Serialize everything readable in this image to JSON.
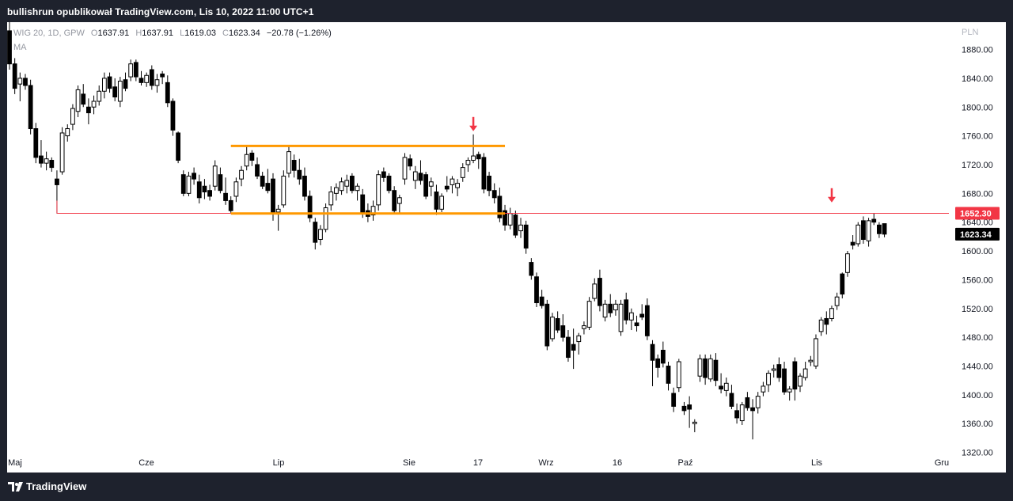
{
  "header": {
    "publish_text": "bullishrun opublikował TradingView.com, Lis 10, 2022 11:00 UTC+1"
  },
  "legend": {
    "symbol": "WIG 20, 1D, GPW",
    "open_label": "O",
    "open": "1637.91",
    "high_label": "H",
    "high": "1637.91",
    "low_label": "L",
    "low": "1619.03",
    "close_label": "C",
    "close": "1623.34",
    "change": "−20.78 (−1.26%)",
    "indicator": "MA"
  },
  "footer": {
    "brand": "TradingView",
    "logo_icon": "tradingview-logo-icon"
  },
  "colors": {
    "frame": "#1e222d",
    "candle": "#000000",
    "resistance_line": "#ff9800",
    "support_level": "#f23645",
    "arrow": "#f23645",
    "axis_text": "#131722"
  },
  "chart_data": {
    "type": "candlestick",
    "currency_label": "PLN",
    "y_ticks": [
      1880,
      1840,
      1800,
      1760,
      1720,
      1680,
      1640,
      1600,
      1560,
      1520,
      1480,
      1440,
      1400,
      1360,
      1320
    ],
    "ylim": [
      1292,
      1918
    ],
    "x_labels": [
      "Maj",
      "Cze",
      "Lip",
      "Sie",
      "17",
      "Wrz",
      "16",
      "Paź",
      "Lis",
      "Gru"
    ],
    "price_labels": [
      {
        "name": "support",
        "value": "1652.30",
        "color": "#f23645"
      },
      {
        "name": "last",
        "value": "1623.34",
        "color": "#000000"
      }
    ],
    "levels": {
      "support": 1652.3
    },
    "channel": {
      "top": 1746,
      "bottom": 1652,
      "start_index": 42,
      "end_index": 94
    },
    "arrows": [
      {
        "index": 88,
        "value": 1762
      },
      {
        "index": 156,
        "value": 1663
      }
    ],
    "candles": [
      [
        1906,
        1918,
        1852,
        1860
      ],
      [
        1860,
        1868,
        1818,
        1826
      ],
      [
        1832,
        1848,
        1808,
        1840
      ],
      [
        1840,
        1846,
        1824,
        1830
      ],
      [
        1830,
        1838,
        1762,
        1770
      ],
      [
        1770,
        1778,
        1722,
        1730
      ],
      [
        1732,
        1754,
        1716,
        1722
      ],
      [
        1722,
        1738,
        1712,
        1728
      ],
      [
        1726,
        1730,
        1710,
        1716
      ],
      [
        1700,
        1712,
        1652,
        1692
      ],
      [
        1710,
        1772,
        1706,
        1764
      ],
      [
        1760,
        1776,
        1752,
        1770
      ],
      [
        1776,
        1804,
        1768,
        1798
      ],
      [
        1794,
        1830,
        1786,
        1824
      ],
      [
        1818,
        1832,
        1800,
        1804
      ],
      [
        1800,
        1812,
        1776,
        1792
      ],
      [
        1800,
        1816,
        1790,
        1808
      ],
      [
        1808,
        1830,
        1802,
        1822
      ],
      [
        1822,
        1848,
        1812,
        1840
      ],
      [
        1842,
        1848,
        1820,
        1826
      ],
      [
        1828,
        1840,
        1808,
        1814
      ],
      [
        1808,
        1842,
        1800,
        1836
      ],
      [
        1838,
        1848,
        1822,
        1826
      ],
      [
        1842,
        1866,
        1836,
        1860
      ],
      [
        1862,
        1866,
        1836,
        1842
      ],
      [
        1840,
        1850,
        1830,
        1834
      ],
      [
        1834,
        1848,
        1828,
        1844
      ],
      [
        1852,
        1858,
        1824,
        1830
      ],
      [
        1830,
        1846,
        1820,
        1838
      ],
      [
        1846,
        1850,
        1832,
        1842
      ],
      [
        1834,
        1844,
        1800,
        1806
      ],
      [
        1808,
        1812,
        1760,
        1768
      ],
      [
        1764,
        1766,
        1722,
        1726
      ],
      [
        1706,
        1712,
        1676,
        1680
      ],
      [
        1680,
        1710,
        1676,
        1704
      ],
      [
        1708,
        1716,
        1692,
        1700
      ],
      [
        1696,
        1706,
        1666,
        1674
      ],
      [
        1690,
        1700,
        1672,
        1682
      ],
      [
        1684,
        1692,
        1670,
        1676
      ],
      [
        1690,
        1726,
        1684,
        1718
      ],
      [
        1706,
        1716,
        1680,
        1684
      ],
      [
        1680,
        1702,
        1664,
        1670
      ],
      [
        1670,
        1676,
        1652,
        1656
      ],
      [
        1676,
        1702,
        1668,
        1696
      ],
      [
        1700,
        1718,
        1690,
        1712
      ],
      [
        1718,
        1746,
        1712,
        1734
      ],
      [
        1736,
        1740,
        1718,
        1726
      ],
      [
        1720,
        1730,
        1700,
        1704
      ],
      [
        1704,
        1710,
        1686,
        1690
      ],
      [
        1694,
        1714,
        1680,
        1684
      ],
      [
        1700,
        1708,
        1642,
        1654
      ],
      [
        1654,
        1664,
        1628,
        1658
      ],
      [
        1664,
        1712,
        1660,
        1704
      ],
      [
        1708,
        1746,
        1702,
        1738
      ],
      [
        1726,
        1734,
        1702,
        1712
      ],
      [
        1712,
        1728,
        1692,
        1700
      ],
      [
        1704,
        1716,
        1670,
        1676
      ],
      [
        1676,
        1684,
        1640,
        1646
      ],
      [
        1640,
        1646,
        1602,
        1612
      ],
      [
        1616,
        1636,
        1608,
        1630
      ],
      [
        1630,
        1666,
        1626,
        1660
      ],
      [
        1664,
        1690,
        1656,
        1682
      ],
      [
        1680,
        1694,
        1670,
        1688
      ],
      [
        1684,
        1702,
        1678,
        1696
      ],
      [
        1690,
        1706,
        1680,
        1698
      ],
      [
        1704,
        1708,
        1680,
        1684
      ],
      [
        1684,
        1694,
        1670,
        1690
      ],
      [
        1678,
        1686,
        1646,
        1652
      ],
      [
        1656,
        1666,
        1640,
        1648
      ],
      [
        1650,
        1670,
        1642,
        1662
      ],
      [
        1664,
        1712,
        1656,
        1706
      ],
      [
        1710,
        1716,
        1696,
        1702
      ],
      [
        1704,
        1708,
        1680,
        1684
      ],
      [
        1684,
        1690,
        1652,
        1656
      ],
      [
        1666,
        1678,
        1652,
        1674
      ],
      [
        1700,
        1736,
        1692,
        1730
      ],
      [
        1728,
        1734,
        1712,
        1718
      ],
      [
        1698,
        1718,
        1686,
        1710
      ],
      [
        1708,
        1726,
        1692,
        1698
      ],
      [
        1706,
        1710,
        1672,
        1676
      ],
      [
        1690,
        1702,
        1676,
        1696
      ],
      [
        1682,
        1692,
        1650,
        1658
      ],
      [
        1658,
        1680,
        1654,
        1676
      ],
      [
        1690,
        1704,
        1682,
        1686
      ],
      [
        1692,
        1704,
        1680,
        1700
      ],
      [
        1688,
        1700,
        1676,
        1694
      ],
      [
        1702,
        1722,
        1696,
        1716
      ],
      [
        1720,
        1730,
        1710,
        1726
      ],
      [
        1726,
        1762,
        1722,
        1732
      ],
      [
        1734,
        1738,
        1714,
        1728
      ],
      [
        1730,
        1736,
        1680,
        1686
      ],
      [
        1704,
        1710,
        1676,
        1684
      ],
      [
        1684,
        1694,
        1666,
        1674
      ],
      [
        1676,
        1688,
        1640,
        1646
      ],
      [
        1656,
        1664,
        1628,
        1636
      ],
      [
        1636,
        1660,
        1630,
        1652
      ],
      [
        1650,
        1656,
        1618,
        1622
      ],
      [
        1628,
        1646,
        1618,
        1636
      ],
      [
        1636,
        1642,
        1596,
        1604
      ],
      [
        1584,
        1590,
        1560,
        1566
      ],
      [
        1564,
        1570,
        1522,
        1528
      ],
      [
        1536,
        1546,
        1520,
        1524
      ],
      [
        1526,
        1532,
        1462,
        1468
      ],
      [
        1478,
        1514,
        1474,
        1508
      ],
      [
        1506,
        1516,
        1486,
        1490
      ],
      [
        1496,
        1512,
        1474,
        1480
      ],
      [
        1480,
        1490,
        1446,
        1452
      ],
      [
        1470,
        1492,
        1436,
        1462
      ],
      [
        1474,
        1486,
        1456,
        1482
      ],
      [
        1492,
        1502,
        1484,
        1496
      ],
      [
        1494,
        1536,
        1490,
        1530
      ],
      [
        1534,
        1562,
        1530,
        1554
      ],
      [
        1562,
        1574,
        1516,
        1524
      ],
      [
        1508,
        1532,
        1502,
        1526
      ],
      [
        1526,
        1540,
        1508,
        1514
      ],
      [
        1518,
        1532,
        1510,
        1526
      ],
      [
        1488,
        1532,
        1482,
        1526
      ],
      [
        1532,
        1542,
        1498,
        1504
      ],
      [
        1504,
        1520,
        1490,
        1514
      ],
      [
        1500,
        1510,
        1488,
        1496
      ],
      [
        1512,
        1526,
        1504,
        1508
      ],
      [
        1524,
        1534,
        1476,
        1482
      ],
      [
        1470,
        1476,
        1412,
        1448
      ],
      [
        1450,
        1456,
        1424,
        1438
      ],
      [
        1462,
        1474,
        1438,
        1444
      ],
      [
        1440,
        1446,
        1406,
        1416
      ],
      [
        1402,
        1410,
        1376,
        1384
      ],
      [
        1410,
        1450,
        1404,
        1446
      ],
      [
        1384,
        1390,
        1372,
        1378
      ],
      [
        1386,
        1398,
        1354,
        1380
      ],
      [
        1360,
        1366,
        1348,
        1362
      ],
      [
        1426,
        1456,
        1418,
        1450
      ],
      [
        1450,
        1456,
        1414,
        1424
      ],
      [
        1422,
        1456,
        1418,
        1450
      ],
      [
        1448,
        1458,
        1412,
        1420
      ],
      [
        1412,
        1430,
        1402,
        1408
      ],
      [
        1406,
        1424,
        1398,
        1416
      ],
      [
        1402,
        1414,
        1380,
        1384
      ],
      [
        1378,
        1388,
        1360,
        1368
      ],
      [
        1364,
        1390,
        1358,
        1386
      ],
      [
        1396,
        1404,
        1378,
        1382
      ],
      [
        1382,
        1394,
        1338,
        1378
      ],
      [
        1382,
        1404,
        1374,
        1398
      ],
      [
        1404,
        1418,
        1398,
        1412
      ],
      [
        1414,
        1434,
        1404,
        1430
      ],
      [
        1434,
        1442,
        1424,
        1436
      ],
      [
        1442,
        1452,
        1418,
        1424
      ],
      [
        1436,
        1446,
        1400,
        1404
      ],
      [
        1404,
        1412,
        1392,
        1408
      ],
      [
        1446,
        1452,
        1392,
        1408
      ],
      [
        1412,
        1430,
        1404,
        1426
      ],
      [
        1424,
        1446,
        1420,
        1436
      ],
      [
        1446,
        1454,
        1440,
        1448
      ],
      [
        1440,
        1484,
        1436,
        1478
      ],
      [
        1488,
        1508,
        1482,
        1504
      ],
      [
        1506,
        1516,
        1484,
        1498
      ],
      [
        1506,
        1524,
        1502,
        1520
      ],
      [
        1524,
        1542,
        1518,
        1536
      ],
      [
        1568,
        1570,
        1534,
        1540
      ],
      [
        1570,
        1600,
        1564,
        1596
      ],
      [
        1612,
        1622,
        1602,
        1608
      ],
      [
        1610,
        1640,
        1606,
        1636
      ],
      [
        1642,
        1648,
        1610,
        1616
      ],
      [
        1614,
        1646,
        1606,
        1642
      ],
      [
        1644,
        1652,
        1636,
        1640
      ],
      [
        1636,
        1640,
        1618,
        1624
      ],
      [
        1637.91,
        1637.91,
        1619.03,
        1623.34
      ]
    ]
  }
}
